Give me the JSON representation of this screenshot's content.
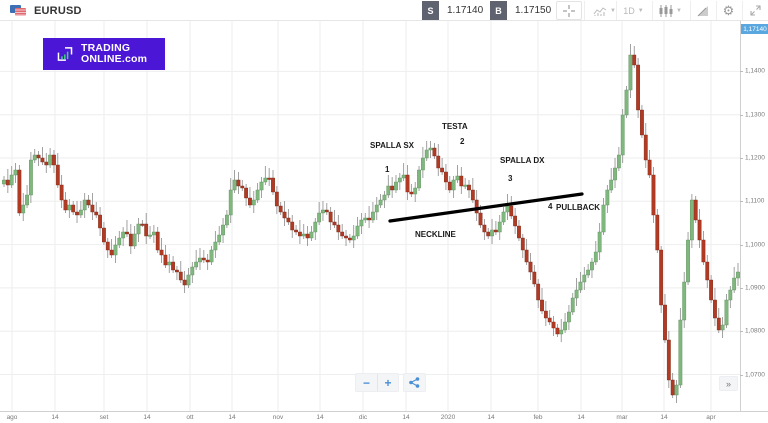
{
  "header": {
    "symbol": "EURUSD",
    "sell": {
      "label": "S",
      "price": "1.17140"
    },
    "buy": {
      "label": "B",
      "price": "1.17150"
    },
    "tools": [
      {
        "name": "crosshair-icon",
        "glyph": "-¦-"
      },
      {
        "name": "indicators-icon",
        "glyph": ""
      },
      {
        "name": "timeframe-select",
        "glyph": "1D"
      },
      {
        "name": "candle-type-icon",
        "glyph": ""
      },
      {
        "name": "drawing-tools-icon",
        "glyph": ""
      },
      {
        "name": "gear-icon",
        "glyph": "⚙"
      },
      {
        "name": "fullscreen-icon",
        "glyph": "⤢"
      }
    ]
  },
  "logo": {
    "line1": "TRADING",
    "line2": "ONLINE.com"
  },
  "price_axis": {
    "current": "1,17140",
    "labels": [
      "1,1400",
      "1,1300",
      "1,1200",
      "1,1100",
      "1,1000",
      "1,0900",
      "1,0800",
      "1,0700"
    ]
  },
  "time_axis": {
    "labels": [
      "ago",
      "14",
      "set",
      "14",
      "ott",
      "14",
      "nov",
      "14",
      "dic",
      "14",
      "2020",
      "14",
      "feb",
      "14",
      "mar",
      "14",
      "apr"
    ]
  },
  "annotations": {
    "spalla_sx": "SPALLA SX",
    "testa": "TESTA",
    "spalla_dx": "SPALLA DX",
    "neckline": "NECKLINE",
    "pullback": "PULLBACK",
    "n1": "1",
    "n2": "2",
    "n3": "3",
    "n4": "4"
  },
  "controls": {
    "zoom_out": "−",
    "zoom_in": "+",
    "share": "share",
    "scroll_right": "»"
  },
  "colors": {
    "bull": "#7fb77e",
    "bear": "#b13a24",
    "wick": "#8a8a8a",
    "logo_bg": "#4b16d6",
    "tag_bg": "#5f6370",
    "current_price_bg": "#5aa7e0"
  },
  "chart_data": {
    "type": "candlestick",
    "title": "EURUSD",
    "timeframe": "1D",
    "ylim": [
      1.0625,
      1.1525
    ],
    "y_ticks": [
      1.07,
      1.08,
      1.09,
      1.1,
      1.11,
      1.12,
      1.13,
      1.14
    ],
    "x_labels": [
      "ago",
      "14",
      "set",
      "14",
      "ott",
      "14",
      "nov",
      "14",
      "dic",
      "14",
      "2020",
      "14",
      "feb",
      "14",
      "mar",
      "14",
      "apr"
    ],
    "pattern": "Head and Shoulders (SPALLA SX 1 – TESTA 2 – SPALLA DX 3 – PULLBACK 4, NECKLINE)",
    "last_price": 1.1714
  }
}
